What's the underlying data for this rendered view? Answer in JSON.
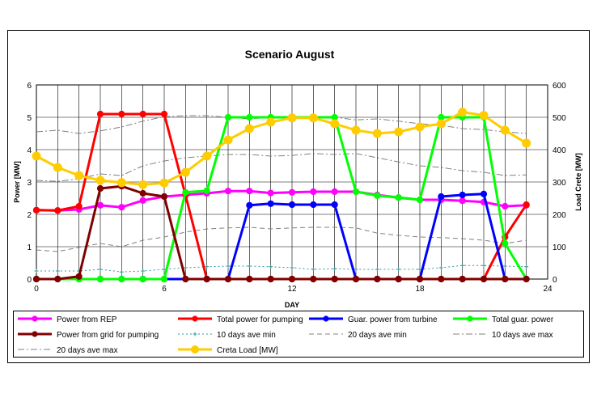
{
  "chart_data": {
    "type": "line",
    "title": "Scenario August",
    "xlabel": "DAY",
    "ylabel": "Power [MW]",
    "y2label": "Load Crete [MW]",
    "xlim": [
      0,
      24
    ],
    "ylim": [
      0,
      6
    ],
    "y2lim": [
      0,
      600
    ],
    "xticks": [
      "0",
      "6",
      "12",
      "18",
      "24"
    ],
    "yticks": [
      "0",
      "1",
      "2",
      "3",
      "4",
      "5",
      "6"
    ],
    "y2ticks": [
      "0",
      "100",
      "200",
      "300",
      "400",
      "500",
      "600"
    ],
    "grid": true,
    "legend_position": "bottom",
    "series": [
      {
        "name": "Power from REP",
        "axis": "left",
        "color": "#ff00ff",
        "style": "solid",
        "marker": "circle",
        "x": [
          0,
          1,
          2,
          3,
          4,
          5,
          6,
          7,
          8,
          9,
          10,
          11,
          12,
          13,
          14,
          15,
          16,
          17,
          18,
          19,
          20,
          21,
          22,
          23
        ],
        "values": [
          2.13,
          2.12,
          2.15,
          2.28,
          2.22,
          2.43,
          2.55,
          2.6,
          2.65,
          2.72,
          2.72,
          2.66,
          2.68,
          2.7,
          2.7,
          2.7,
          2.6,
          2.52,
          2.45,
          2.45,
          2.42,
          2.38,
          2.25,
          2.28
        ]
      },
      {
        "name": "Total power for pumping",
        "axis": "left",
        "color": "#ff0000",
        "style": "solid",
        "marker": "circle",
        "x": [
          0,
          1,
          2,
          3,
          4,
          5,
          6,
          7,
          8,
          9,
          10,
          11,
          12,
          13,
          14,
          15,
          16,
          17,
          18,
          19,
          20,
          21,
          22,
          23
        ],
        "values": [
          2.13,
          2.12,
          2.25,
          5.1,
          5.1,
          5.1,
          5.1,
          2.6,
          0,
          0,
          0,
          0,
          0,
          0,
          0,
          0,
          0,
          0,
          0,
          0,
          0,
          0,
          1.3,
          2.3
        ]
      },
      {
        "name": "Guar. power from turbine",
        "axis": "left",
        "color": "#0000ff",
        "style": "solid",
        "marker": "circle",
        "x": [
          0,
          1,
          2,
          3,
          4,
          5,
          6,
          7,
          8,
          9,
          10,
          11,
          12,
          13,
          14,
          15,
          16,
          17,
          18,
          19,
          20,
          21,
          22,
          23
        ],
        "values": [
          0,
          0,
          0,
          0,
          0,
          0,
          0,
          0,
          0,
          0,
          2.28,
          2.33,
          2.3,
          2.3,
          2.3,
          0,
          0,
          0,
          0,
          2.55,
          2.6,
          2.63,
          0,
          0
        ]
      },
      {
        "name": "Total guar. power",
        "axis": "left",
        "color": "#00ff00",
        "style": "solid",
        "marker": "circle",
        "x": [
          0,
          1,
          2,
          3,
          4,
          5,
          6,
          7,
          8,
          9,
          10,
          11,
          12,
          13,
          14,
          15,
          16,
          17,
          18,
          19,
          20,
          21,
          22,
          23
        ],
        "values": [
          0,
          0,
          0,
          0,
          0,
          0,
          0,
          2.68,
          2.73,
          5,
          5,
          5,
          5,
          5,
          5,
          2.7,
          2.58,
          2.52,
          2.45,
          5,
          5,
          5,
          1.1,
          0
        ]
      },
      {
        "name": "Power from grid for pumping",
        "axis": "left",
        "color": "#800000",
        "style": "solid",
        "marker": "circle",
        "x": [
          0,
          1,
          2,
          3,
          4,
          5,
          6,
          7,
          8,
          9,
          10,
          11,
          12,
          13,
          14,
          15,
          16,
          17,
          18,
          19,
          20,
          21,
          22,
          23
        ],
        "values": [
          0,
          0,
          0.08,
          2.8,
          2.87,
          2.65,
          2.55,
          0,
          0,
          0,
          0,
          0,
          0,
          0,
          0,
          0,
          0,
          0,
          0,
          0,
          0,
          0,
          0,
          0
        ]
      },
      {
        "name": "10 days ave min",
        "axis": "left",
        "color": "#339999",
        "style": "dotted",
        "marker": "plus",
        "x": [
          0,
          1,
          2,
          3,
          4,
          5,
          6,
          7,
          8,
          9,
          10,
          11,
          12,
          13,
          14,
          15,
          16,
          17,
          18,
          19,
          20,
          21,
          22,
          23
        ],
        "values": [
          0.25,
          0.25,
          0.25,
          0.3,
          0.22,
          0.25,
          0.3,
          0.35,
          0.38,
          0.4,
          0.4,
          0.38,
          0.35,
          0.3,
          0.32,
          0.3,
          0.3,
          0.3,
          0.3,
          0.35,
          0.42,
          0.42,
          0.4,
          0.38
        ]
      },
      {
        "name": "20 days ave min",
        "axis": "left",
        "color": "#808080",
        "style": "dashed",
        "marker": "none",
        "x": [
          0,
          1,
          2,
          3,
          4,
          5,
          6,
          7,
          8,
          9,
          10,
          11,
          12,
          13,
          14,
          15,
          16,
          17,
          18,
          19,
          20,
          21,
          22,
          23
        ],
        "values": [
          0.9,
          0.85,
          0.98,
          1.1,
          1.0,
          1.2,
          1.3,
          1.45,
          1.55,
          1.58,
          1.6,
          1.55,
          1.58,
          1.6,
          1.6,
          1.58,
          1.42,
          1.35,
          1.3,
          1.28,
          1.25,
          1.2,
          1.1,
          1.2
        ]
      },
      {
        "name": "10 days ave max",
        "axis": "left",
        "color": "#808080",
        "style": "dashdot",
        "marker": "none",
        "x": [
          0,
          1,
          2,
          3,
          4,
          5,
          6,
          7,
          8,
          9,
          10,
          11,
          12,
          13,
          14,
          15,
          16,
          17,
          18,
          19,
          20,
          21,
          22,
          23
        ],
        "values": [
          3.05,
          3.02,
          3.1,
          3.25,
          3.2,
          3.5,
          3.65,
          3.75,
          3.8,
          3.85,
          3.85,
          3.8,
          3.82,
          3.88,
          3.85,
          3.88,
          3.75,
          3.62,
          3.5,
          3.45,
          3.35,
          3.3,
          3.2,
          3.22
        ]
      },
      {
        "name": "20 days ave max",
        "axis": "left",
        "color": "#808080",
        "style": "dashdot",
        "marker": "none",
        "x": [
          0,
          1,
          2,
          3,
          4,
          5,
          6,
          7,
          8,
          9,
          10,
          11,
          12,
          13,
          14,
          15,
          16,
          17,
          18,
          19,
          20,
          21,
          22,
          23
        ],
        "values": [
          4.55,
          4.6,
          4.5,
          4.58,
          4.7,
          4.88,
          5.02,
          5.05,
          5.05,
          5.0,
          4.95,
          5.0,
          4.98,
          4.98,
          5.0,
          4.92,
          4.95,
          4.88,
          4.8,
          4.75,
          4.65,
          4.62,
          4.55,
          4.5
        ]
      },
      {
        "name": "Creta Load [MW]",
        "axis": "right",
        "color": "#ffcc00",
        "style": "solid",
        "marker": "circle",
        "x": [
          0,
          1,
          2,
          3,
          4,
          5,
          6,
          7,
          8,
          9,
          10,
          11,
          12,
          13,
          14,
          15,
          16,
          17,
          18,
          19,
          20,
          21,
          22,
          23
        ],
        "values": [
          380,
          345,
          320,
          305,
          298,
          292,
          297,
          330,
          380,
          430,
          465,
          485,
          498,
          498,
          480,
          460,
          450,
          455,
          470,
          480,
          516,
          506,
          460,
          420
        ]
      }
    ]
  }
}
